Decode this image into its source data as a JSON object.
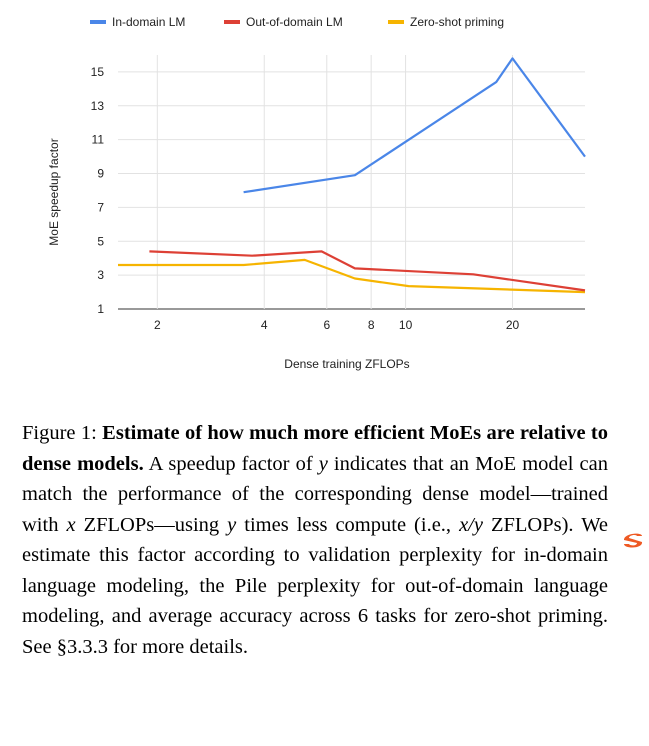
{
  "chart_data": {
    "type": "line",
    "title": "",
    "xlabel": "Dense training ZFLOPs",
    "ylabel": "MoE speedup factor",
    "x_scale": "log",
    "xlim": [
      1.55,
      32
    ],
    "ylim": [
      1,
      16
    ],
    "x_ticks": [
      2,
      4,
      6,
      8,
      10,
      20
    ],
    "y_ticks": [
      1,
      3,
      5,
      7,
      9,
      11,
      13,
      15
    ],
    "grid": true,
    "legend": "top",
    "series": [
      {
        "name": "In-domain LM",
        "color": "#4a86e8",
        "x": [
          3.5,
          7.2,
          18.0,
          20.0,
          32.0
        ],
        "y": [
          7.9,
          8.9,
          14.4,
          15.8,
          10.0
        ]
      },
      {
        "name": "Out-of-domain LM",
        "color": "#dd4035",
        "x": [
          1.9,
          3.7,
          5.8,
          7.2,
          15.5,
          32.0
        ],
        "y": [
          4.4,
          4.15,
          4.4,
          3.4,
          3.05,
          2.1
        ]
      },
      {
        "name": "Zero-shot priming",
        "color": "#f6b400",
        "x": [
          1.55,
          3.5,
          5.2,
          7.2,
          10.2,
          32.0
        ],
        "y": [
          3.6,
          3.6,
          3.9,
          2.8,
          2.35,
          2.0
        ]
      }
    ]
  },
  "caption": {
    "label": "Figure 1: ",
    "title": "Estimate of how much more efficient MoEs are relative to dense models.",
    "t1": " A speedup factor of ",
    "v_y1": "y",
    "t2": " indicates that an MoE model can match the performance of the corresponding dense model—trained with ",
    "v_x": "x",
    "t3": " ZFLOPs—using ",
    "v_y2": "y",
    "t4": " times less compute (i.e., ",
    "v_xy": "x/y",
    "t5": " ZFLOPs). We estimate this factor according to validation perplexity for in-domain language modeling, the Pile perplexity for out-of-domain language modeling, and average accuracy across 6 tasks for zero-shot priming. See ",
    "ref": "§3.3.3",
    "t6": " for more details."
  },
  "logo_icon": "s-logo-icon"
}
